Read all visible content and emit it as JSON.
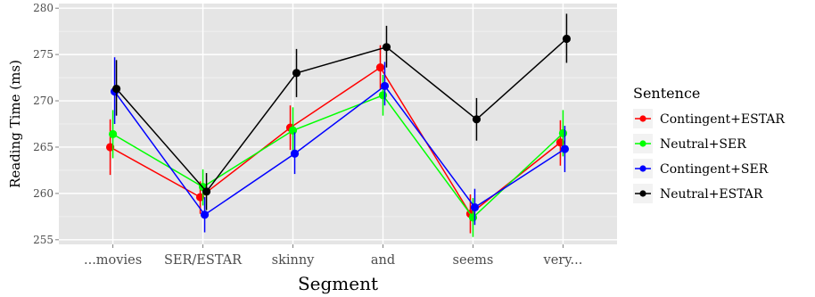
{
  "chart_data": {
    "type": "line",
    "xlabel": "Segment",
    "ylabel": "Reading Time (ms)",
    "categories": [
      "...movies",
      "SER/ESTAR",
      "skinny",
      "and",
      "seems",
      "very..."
    ],
    "ylim": [
      254.5,
      280.5
    ],
    "yticks": [
      255,
      260,
      265,
      270,
      275,
      280
    ],
    "grid": true,
    "legend": {
      "title": "Sentence",
      "position": "right"
    },
    "series": [
      {
        "name": "Contingent+ESTAR",
        "color": "#ff0000",
        "values": [
          265.0,
          259.6,
          267.1,
          273.6,
          257.8,
          265.5
        ],
        "lower": [
          262.0,
          257.8,
          264.7,
          271.2,
          255.7,
          263.0
        ],
        "upper": [
          268.0,
          261.3,
          269.5,
          276.0,
          259.9,
          267.9
        ]
      },
      {
        "name": "Neutral+SER",
        "color": "#00ff00",
        "values": [
          266.4,
          260.7,
          266.8,
          270.6,
          257.4,
          266.5
        ],
        "lower": [
          263.8,
          258.7,
          264.3,
          268.4,
          255.3,
          264.0
        ],
        "upper": [
          269.0,
          262.6,
          269.3,
          272.8,
          259.5,
          269.0
        ]
      },
      {
        "name": "Contingent+SER",
        "color": "#0000ff",
        "values": [
          271.0,
          257.7,
          264.3,
          271.6,
          258.5,
          264.8
        ],
        "lower": [
          267.5,
          255.8,
          262.1,
          269.5,
          256.6,
          262.3
        ],
        "upper": [
          274.7,
          259.6,
          266.6,
          274.2,
          260.5,
          267.3
        ]
      },
      {
        "name": "Neutral+ESTAR",
        "color": "#000000",
        "values": [
          271.3,
          260.2,
          273.0,
          275.8,
          268.0,
          276.7
        ],
        "lower": [
          268.4,
          258.2,
          270.4,
          273.6,
          265.7,
          274.1
        ],
        "upper": [
          274.4,
          262.2,
          275.6,
          278.1,
          270.3,
          279.4
        ]
      }
    ]
  }
}
